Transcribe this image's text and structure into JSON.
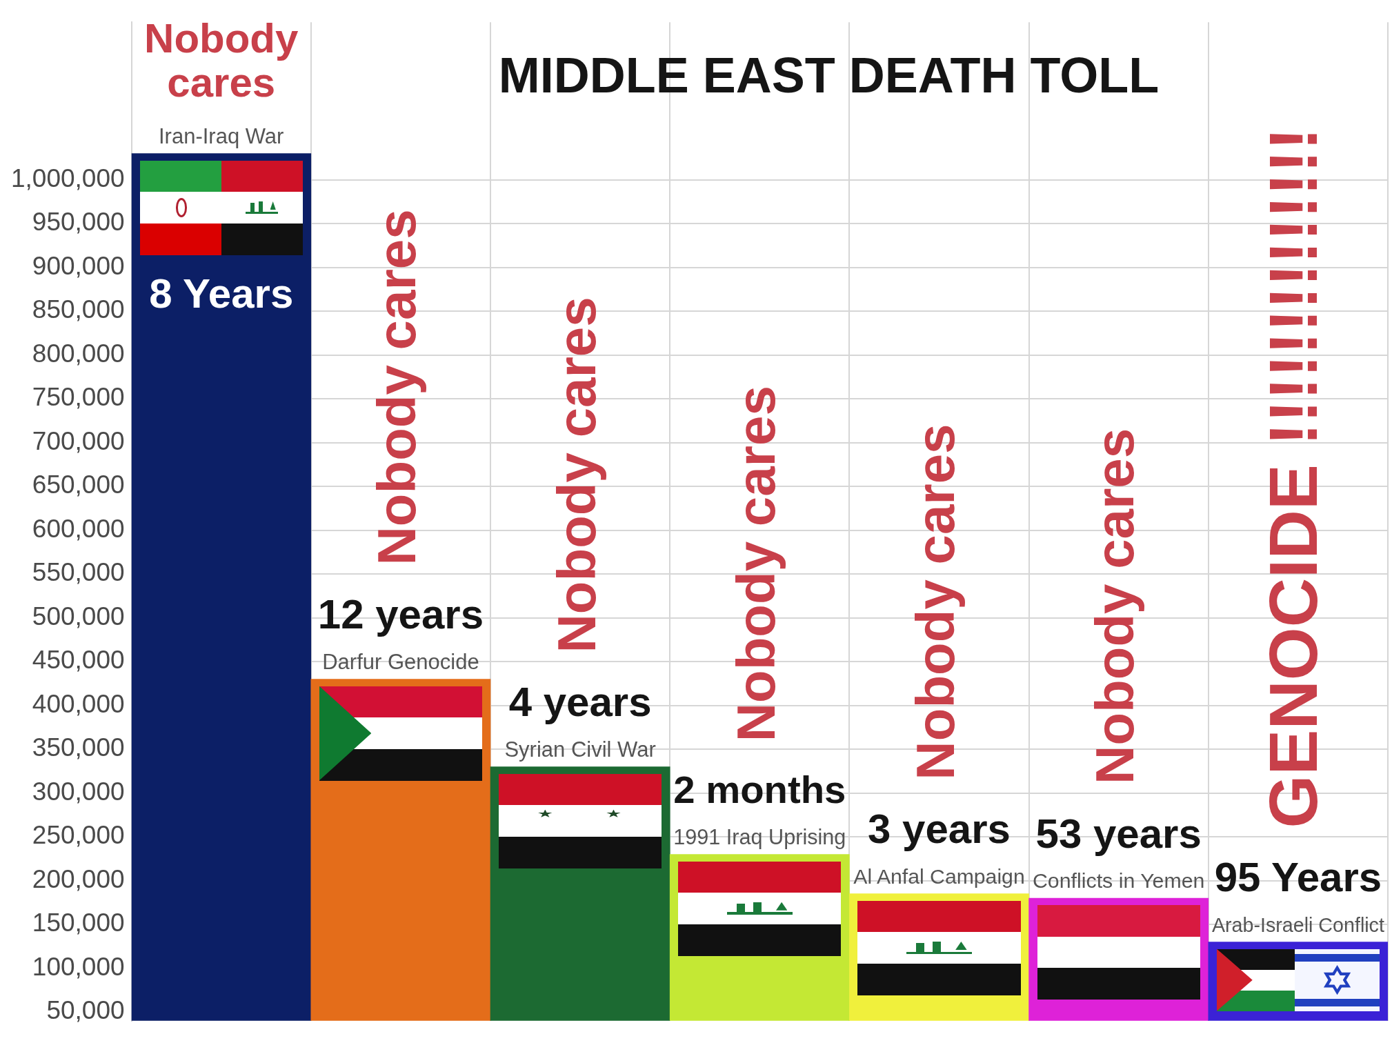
{
  "chart_data": {
    "type": "bar",
    "title": "MIDDLE EAST DEATH TOLL",
    "categories": [
      "Iran-Iraq War",
      "Darfur Genocide",
      "Syrian Civil War",
      "1991 Iraq Uprising",
      "Al Anfal Campaign",
      "Conflicts in Yemen",
      "Arab-Israeli Conflict"
    ],
    "values": [
      1030000,
      430000,
      330000,
      230000,
      185000,
      180000,
      130000
    ],
    "colors": [
      "#0c1f66",
      "#e46d1a",
      "#1c6a32",
      "#c4e834",
      "#f0f03c",
      "#de22d8",
      "#3b22d6"
    ],
    "ylim": [
      40000,
      1180000
    ],
    "yticks": [
      {
        "value": 50000,
        "label": "50,000"
      },
      {
        "value": 100000,
        "label": "100,000"
      },
      {
        "value": 150000,
        "label": "150,000"
      },
      {
        "value": 200000,
        "label": "200,000"
      },
      {
        "value": 250000,
        "label": "250,000"
      },
      {
        "value": 300000,
        "label": "300,000"
      },
      {
        "value": 350000,
        "label": "350,000"
      },
      {
        "value": 400000,
        "label": "400,000"
      },
      {
        "value": 450000,
        "label": "450,000"
      },
      {
        "value": 500000,
        "label": "500,000"
      },
      {
        "value": 550000,
        "label": "550,000"
      },
      {
        "value": 600000,
        "label": "600,000"
      },
      {
        "value": 650000,
        "label": "650,000"
      },
      {
        "value": 700000,
        "label": "700,000"
      },
      {
        "value": 750000,
        "label": "750,000"
      },
      {
        "value": 800000,
        "label": "800,000"
      },
      {
        "value": 850000,
        "label": "850,000"
      },
      {
        "value": 900000,
        "label": "900,000"
      },
      {
        "value": 950000,
        "label": "950,000"
      },
      {
        "value": 1000000,
        "label": "1,000,000"
      }
    ],
    "grid": true,
    "annotations": [
      "Nobody cares",
      "8 Years",
      "Nobody cares",
      "12 years",
      "Nobody cares",
      "4 years",
      "Nobody cares",
      "2 months",
      "Nobody cares",
      "3 years",
      "Nobody cares",
      "53 years",
      "GENOCIDE !!!!!!!!!!!!!!",
      "95 Years"
    ]
  }
}
